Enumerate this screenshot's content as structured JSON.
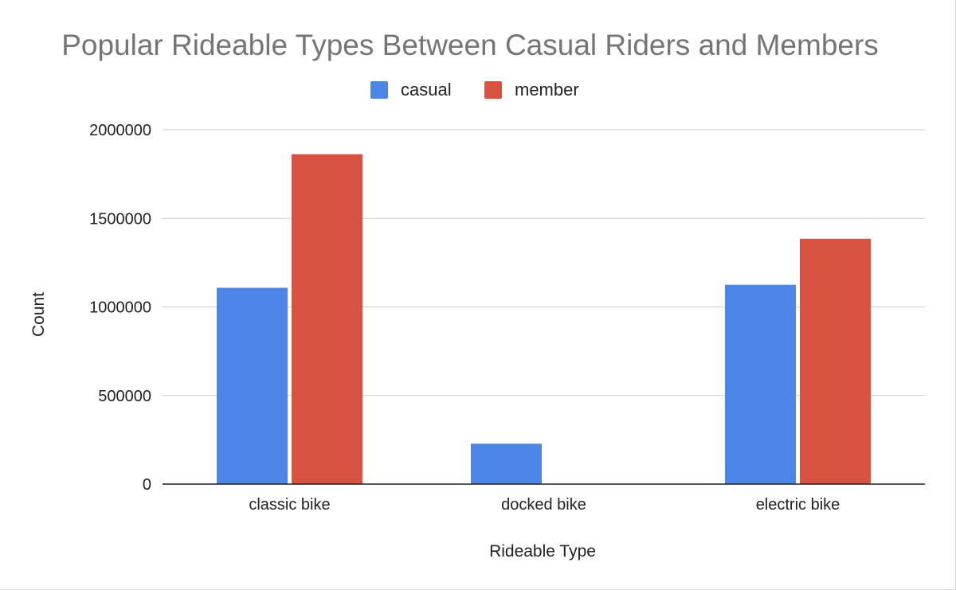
{
  "chart_data": {
    "type": "bar",
    "title": "Popular Rideable Types Between Casual Riders and Members",
    "xlabel": "Rideable Type",
    "ylabel": "Count",
    "categories": [
      "classic bike",
      "docked bike",
      "electric bike"
    ],
    "series": [
      {
        "name": "casual",
        "color": "#4e86e8",
        "values": [
          1108000,
          228000,
          1125000
        ]
      },
      {
        "name": "member",
        "color": "#d85141",
        "values": [
          1862000,
          0,
          1385000
        ]
      }
    ],
    "ylim": [
      0,
      2000000
    ],
    "yticks": [
      "0",
      "500000",
      "1000000",
      "1500000",
      "2000000"
    ],
    "grid": true,
    "legend_position": "top"
  }
}
